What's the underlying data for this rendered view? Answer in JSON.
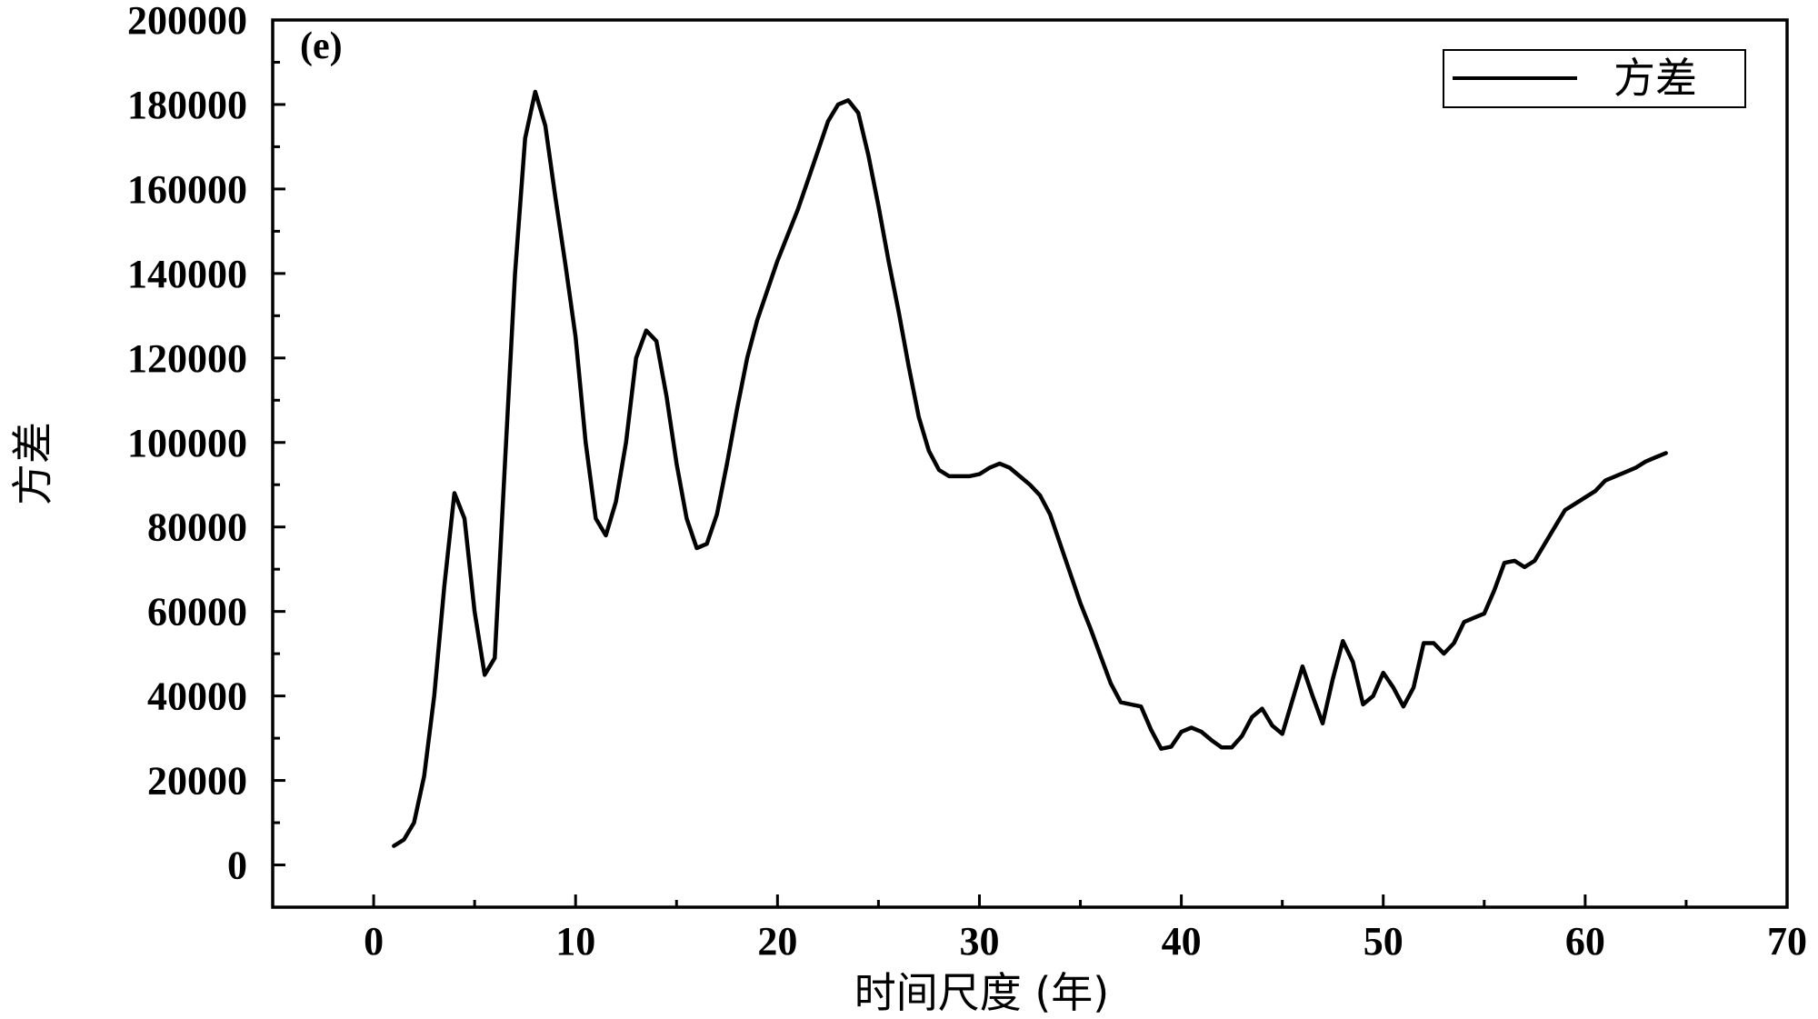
{
  "chart_data": {
    "type": "line",
    "panel_label": "(e)",
    "xlabel": "时间尺度 (年)",
    "ylabel": "方差",
    "xlim": [
      -5,
      70
    ],
    "ylim": [
      -10000,
      200000
    ],
    "xticks": [
      0,
      10,
      20,
      30,
      40,
      50,
      60,
      70
    ],
    "yticks": [
      0,
      20000,
      40000,
      60000,
      80000,
      100000,
      120000,
      140000,
      160000,
      180000,
      200000
    ],
    "legend_position": "top-right",
    "grid": false,
    "series": [
      {
        "name": "方差",
        "color": "#000000",
        "x": [
          1,
          1.5,
          2,
          2.5,
          3,
          3.5,
          4,
          4.5,
          5,
          5.5,
          6,
          6.5,
          7,
          7.5,
          8,
          8.5,
          9,
          9.5,
          10,
          10.5,
          11,
          11.5,
          12,
          12.5,
          13,
          13.5,
          14,
          14.5,
          15,
          15.5,
          16,
          16.5,
          17,
          17.5,
          18,
          18.5,
          19,
          19.5,
          20,
          20.5,
          21,
          21.5,
          22,
          22.5,
          23,
          23.5,
          24,
          24.5,
          25,
          25.5,
          26,
          26.5,
          27,
          27.5,
          28,
          28.5,
          29,
          29.5,
          30,
          30.5,
          31,
          31.5,
          32,
          32.5,
          33,
          33.5,
          34,
          34.5,
          35,
          35.5,
          36,
          36.5,
          37,
          37.5,
          38,
          38.5,
          39,
          39.5,
          40,
          40.5,
          41,
          41.5,
          42,
          42.5,
          43,
          43.5,
          44,
          44.5,
          45,
          45.5,
          46,
          46.5,
          47,
          47.5,
          48,
          48.5,
          49,
          49.5,
          50,
          50.5,
          51,
          51.5,
          52,
          52.5,
          53,
          53.5,
          54,
          54.5,
          55,
          55.5,
          56,
          56.5,
          57,
          57.5,
          58,
          58.5,
          59,
          59.5,
          60,
          60.5,
          61,
          61.5,
          62,
          62.5,
          63,
          63.5,
          64
        ],
        "values": [
          4500,
          6000,
          10000,
          21000,
          40000,
          66000,
          88000,
          82000,
          60000,
          45000,
          49000,
          95000,
          140000,
          172000,
          183000,
          175000,
          158000,
          142000,
          125000,
          100000,
          82000,
          78000,
          86000,
          100000,
          120000,
          126500,
          124000,
          111000,
          95000,
          82000,
          75000,
          76000,
          83000,
          95000,
          108000,
          120000,
          129000,
          136000,
          143000,
          149000,
          155000,
          162000,
          169000,
          176000,
          180000,
          181000,
          178000,
          168000,
          156000,
          143000,
          131000,
          118000,
          106000,
          98000,
          93500,
          92000,
          92000,
          92000,
          92500,
          94000,
          95000,
          94000,
          92000,
          90000,
          87500,
          83000,
          76000,
          69000,
          62000,
          56000,
          49500,
          43000,
          38500,
          38000,
          37500,
          32000,
          27500,
          28000,
          31500,
          32500,
          31500,
          29500,
          27800,
          27800,
          30500,
          35000,
          37000,
          33000,
          31000,
          39000,
          47000,
          40000,
          33500,
          44000,
          53000,
          48000,
          38000,
          40000,
          45500,
          42000,
          37500,
          42000,
          52500,
          52500,
          50000,
          52500,
          57500,
          58500,
          59500,
          65000,
          71500,
          72000,
          70500,
          72000,
          76000,
          80000,
          84000,
          85500,
          87000,
          88500,
          91000,
          92000,
          93000,
          94000,
          95500,
          96500,
          97500
        ]
      }
    ]
  }
}
